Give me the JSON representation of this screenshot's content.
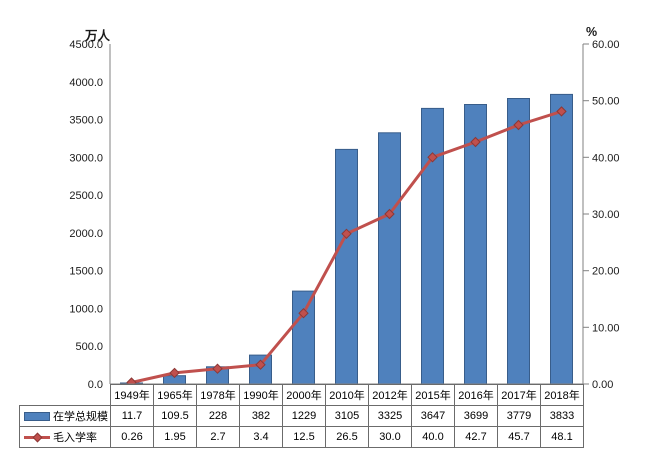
{
  "chart": {
    "left_axis_title": "万人",
    "right_axis_title": "%"
  },
  "chart_data": {
    "type": "bar",
    "subtype": "bar-line-combo-dual-axis",
    "categories": [
      "1949年",
      "1965年",
      "1978年",
      "1990年",
      "2000年",
      "2010年",
      "2012年",
      "2015年",
      "2016年",
      "2017年",
      "2018年"
    ],
    "series": [
      {
        "name": "在学总规模",
        "chart_type": "bar",
        "axis": "left",
        "color": "#4f81bd",
        "border_color": "#385d8a",
        "values": [
          11.7,
          109.5,
          228,
          382,
          1229,
          3105,
          3325,
          3647,
          3699,
          3779,
          3833
        ],
        "display_values": [
          "11.7",
          "109.5",
          "228",
          "382",
          "1229",
          "3105",
          "3325",
          "3647",
          "3699",
          "3779",
          "3833"
        ]
      },
      {
        "name": "毛入学率",
        "chart_type": "line",
        "axis": "right",
        "color": "#c0504d",
        "marker": "diamond",
        "marker_border_color": "#8c3836",
        "values": [
          0.26,
          1.95,
          2.7,
          3.4,
          12.5,
          26.5,
          30.0,
          40.0,
          42.7,
          45.7,
          48.1
        ],
        "display_values": [
          "0.26",
          "1.95",
          "2.7",
          "3.4",
          "12.5",
          "26.5",
          "30.0",
          "40.0",
          "42.7",
          "45.7",
          "48.1"
        ]
      }
    ],
    "left_axis": {
      "title": "万人",
      "min": 0,
      "max": 4500,
      "step": 500,
      "tick_labels": [
        "0.0",
        "500.0",
        "1000.0",
        "1500.0",
        "2000.0",
        "2500.0",
        "3000.0",
        "3500.0",
        "4000.0",
        "4500.0"
      ]
    },
    "right_axis": {
      "title": "%",
      "min": 0,
      "max": 60,
      "step": 10,
      "tick_labels": [
        "0.00",
        "10.00",
        "20.00",
        "30.00",
        "40.00",
        "50.00",
        "60.00"
      ]
    },
    "grid": false,
    "legend_position": "table-row-headers"
  }
}
